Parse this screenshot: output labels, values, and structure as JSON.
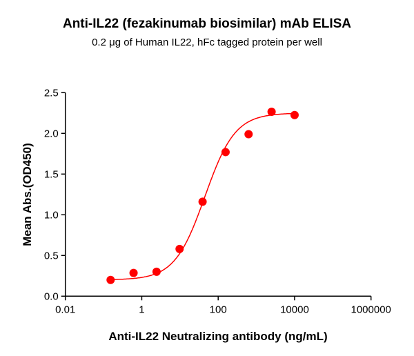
{
  "chart_data": {
    "type": "scatter",
    "title": "Anti-IL22 (fezakinumab biosimilar) mAb ELISA",
    "subtitle": "0.2 μg of Human IL22, hFc tagged protein per well",
    "xlabel": "Anti-IL22 Neutralizing antibody (ng/mL)",
    "ylabel": "Mean Abs.(OD450)",
    "xscale": "log",
    "xlim": [
      0.01,
      1000000
    ],
    "ylim": [
      0,
      2.5
    ],
    "xticks": [
      "0.01",
      "1",
      "100",
      "10000",
      "1000000"
    ],
    "yticks": [
      "0.0",
      "0.5",
      "1.0",
      "1.5",
      "2.0",
      "2.5"
    ],
    "grid": false,
    "color": "#ff0000",
    "x": [
      0.153,
      0.61,
      2.44,
      9.77,
      39.06,
      156.25,
      625,
      2500,
      10000
    ],
    "y": [
      0.2,
      0.285,
      0.3,
      0.58,
      1.16,
      1.77,
      1.99,
      2.265,
      2.225
    ],
    "fit": {
      "model": "4PL",
      "bottom": 0.2,
      "top": 2.25,
      "ec50": 45,
      "hill": 1.1
    }
  }
}
